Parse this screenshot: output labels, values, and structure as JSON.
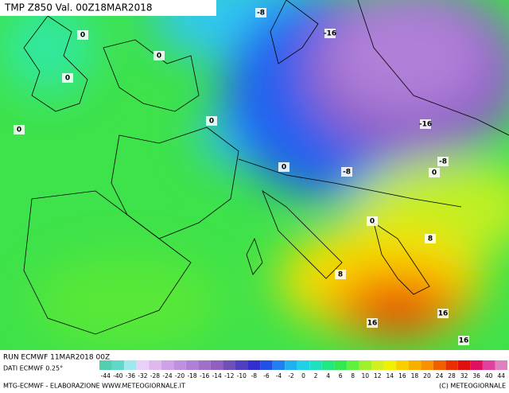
{
  "header": {
    "title": "TMP Z850 Val. 00Z18MAR2018"
  },
  "map": {
    "labels": [
      -8,
      -16,
      0,
      0,
      0,
      0,
      0,
      -16,
      -8,
      0,
      0,
      -8,
      0,
      8,
      8,
      16,
      16,
      16
    ]
  },
  "footer": {
    "run": "RUN ECMWF 11MAR2018 00Z",
    "data": "DATI ECMWF 0.25°",
    "credit": "MTG-ECMWF - ELABORAZIONE WWW.METEOGIORNALE.IT",
    "copyright": "(C) METEOGIORNALE"
  },
  "legend": {
    "values": [
      -44,
      -40,
      -36,
      -32,
      -28,
      -24,
      -20,
      -18,
      -16,
      -14,
      -12,
      -10,
      -8,
      -6,
      -4,
      -2,
      0,
      2,
      4,
      6,
      8,
      10,
      12,
      14,
      16,
      18,
      20,
      24,
      28,
      32,
      36,
      40,
      44
    ],
    "colors": [
      "#50d0b0",
      "#60d8c8",
      "#a0e8f0",
      "#e8d0f8",
      "#e0b8f0",
      "#d0a0e8",
      "#c090e0",
      "#b080d8",
      "#a070c8",
      "#9060c0",
      "#7050b8",
      "#5040c0",
      "#3030d0",
      "#2050e8",
      "#2080f0",
      "#20b0f0",
      "#20d0e8",
      "#20e0c0",
      "#20e880",
      "#30e850",
      "#60f040",
      "#a0f030",
      "#d0f020",
      "#f0f000",
      "#f8d000",
      "#f8b000",
      "#f89000",
      "#f06000",
      "#e83000",
      "#e01010",
      "#e01060",
      "#e040a0",
      "#e080c0"
    ]
  }
}
